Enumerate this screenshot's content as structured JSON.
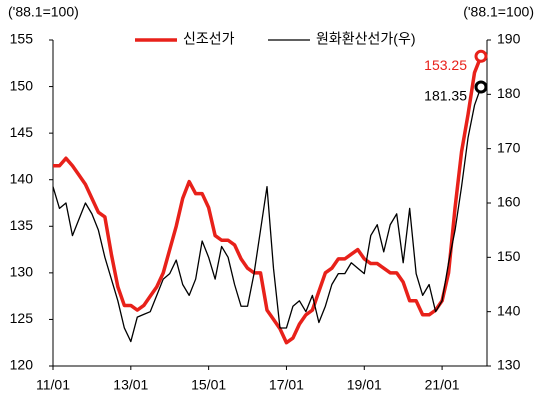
{
  "chart_data": {
    "type": "line",
    "ylabel": "('88.1=100)",
    "y2label": "('88.1=100)",
    "categories": [
      "11/01",
      null,
      null,
      null,
      null,
      null,
      null,
      null,
      null,
      null,
      null,
      null,
      "13/01",
      null,
      null,
      null,
      null,
      null,
      null,
      null,
      null,
      null,
      null,
      null,
      "15/01",
      null,
      null,
      null,
      null,
      null,
      null,
      null,
      null,
      null,
      null,
      null,
      "17/01",
      null,
      null,
      null,
      null,
      null,
      null,
      null,
      null,
      null,
      null,
      null,
      "19/01",
      null,
      null,
      null,
      null,
      null,
      null,
      null,
      null,
      null,
      null,
      null,
      "21/01",
      null,
      null,
      null,
      null,
      null,
      null
    ],
    "series": [
      {
        "name": "신조선가",
        "color": "#e8211a",
        "values": [
          141.5,
          141.5,
          142.3,
          141.5,
          140.5,
          139.5,
          138.0,
          136.5,
          136.0,
          132.0,
          128.5,
          126.5,
          126.5,
          126.0,
          126.5,
          127.5,
          128.5,
          130.0,
          132.5,
          135.0,
          138.0,
          139.8,
          138.5,
          138.5,
          137.0,
          134.0,
          133.5,
          133.5,
          133.0,
          131.5,
          130.5,
          130.0,
          130.0,
          126.0,
          125.0,
          124.0,
          122.5,
          123.0,
          124.5,
          125.5,
          126.0,
          128.0,
          130.0,
          130.5,
          131.5,
          131.5,
          132.0,
          132.5,
          131.5,
          131.0,
          131.0,
          130.5,
          130.0,
          130.0,
          129.0,
          127.0,
          127.0,
          125.5,
          125.5,
          126.0,
          127.0,
          130.0,
          137.0,
          143.0,
          147.0,
          151.5,
          153.25
        ]
      },
      {
        "name": "원화환산선가(우)",
        "color": "#000000",
        "axis": "y2",
        "values": [
          163,
          159,
          160,
          154,
          157,
          160,
          158,
          155,
          150,
          146,
          142,
          137,
          134.5,
          139,
          139.5,
          140,
          143,
          146,
          147,
          149.5,
          145,
          143,
          146,
          153,
          150,
          146,
          152,
          150,
          145,
          141,
          141,
          147,
          155,
          163,
          148,
          137,
          137,
          141,
          142,
          140,
          143,
          138,
          141,
          145,
          147,
          147,
          149,
          148,
          147,
          154,
          156,
          151,
          156,
          158,
          149,
          159,
          147,
          143,
          145,
          140,
          142,
          149,
          155,
          163,
          172,
          178,
          181.35
        ]
      }
    ],
    "ylim": [
      120,
      155
    ],
    "yticks": [
      120,
      125,
      130,
      135,
      140,
      145,
      150,
      155
    ],
    "y2lim": [
      130,
      190
    ],
    "y2ticks": [
      130,
      140,
      150,
      160,
      170,
      180,
      190
    ],
    "legend": "top"
  }
}
